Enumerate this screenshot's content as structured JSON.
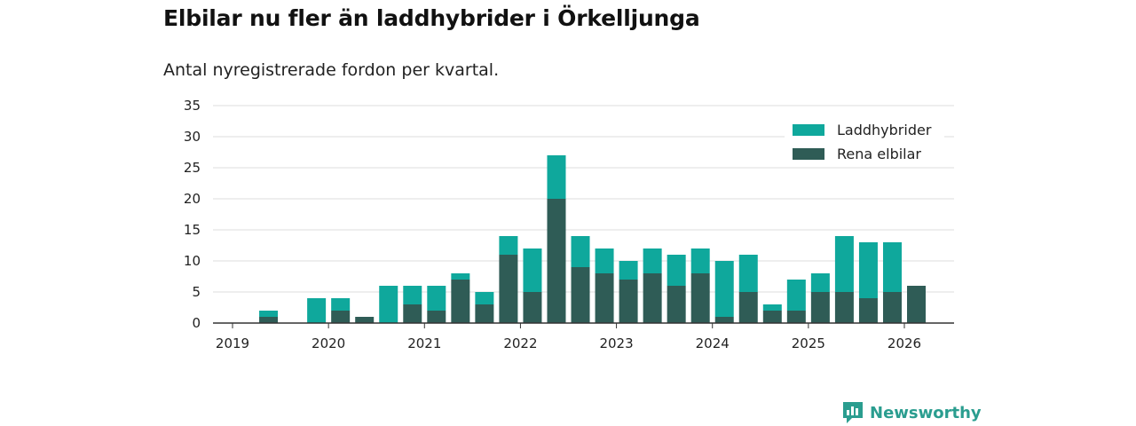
{
  "title": "Elbilar nu fler än laddhybrider i Örkelljunga",
  "subtitle": "Antal nyregistrerade fordon per kvartal.",
  "brand": "Newsworthy",
  "colors": {
    "laddhybrider": "#0fa89c",
    "rena_elbilar": "#2f5c56",
    "grid": "#dcdcdc",
    "axis": "#333333",
    "brand": "#2a9d8f"
  },
  "chart_data": {
    "type": "bar",
    "stacked": true,
    "title": "Elbilar nu fler än laddhybrider i Örkelljunga",
    "subtitle": "Antal nyregistrerade fordon per kvartal.",
    "xlabel": "",
    "ylabel": "",
    "ylim": [
      0,
      35
    ],
    "yticks": [
      0,
      5,
      10,
      15,
      20,
      25,
      30,
      35
    ],
    "xticks": [
      "2019",
      "2020",
      "2021",
      "2022",
      "2023",
      "2024",
      "2025",
      "2026"
    ],
    "legend_position": "top-right",
    "categories": [
      "2019 Q2",
      "2019 Q3",
      "2019 Q4",
      "2020 Q1",
      "2020 Q2",
      "2020 Q3",
      "2020 Q4",
      "2021 Q1",
      "2021 Q2",
      "2021 Q3",
      "2021 Q4",
      "2022 Q1",
      "2022 Q2",
      "2022 Q3",
      "2022 Q4",
      "2023 Q1",
      "2023 Q2",
      "2023 Q3",
      "2023 Q4",
      "2024 Q1",
      "2024 Q2",
      "2024 Q3",
      "2024 Q4",
      "2025 Q1",
      "2025 Q2",
      "2025 Q3",
      "2025 Q4",
      "2026 Q1"
    ],
    "series": [
      {
        "name": "Rena elbilar",
        "values": [
          1,
          0,
          0,
          2,
          1,
          0,
          3,
          2,
          7,
          3,
          11,
          5,
          20,
          9,
          8,
          7,
          8,
          6,
          8,
          1,
          5,
          2,
          2,
          5,
          5,
          4,
          5,
          6
        ]
      },
      {
        "name": "Laddhybrider",
        "values": [
          1,
          0,
          4,
          2,
          0,
          6,
          3,
          4,
          1,
          2,
          3,
          7,
          7,
          5,
          4,
          3,
          4,
          5,
          4,
          9,
          6,
          1,
          5,
          3,
          9,
          9,
          8,
          0
        ]
      }
    ],
    "legend": [
      "Laddhybrider",
      "Rena elbilar"
    ]
  }
}
